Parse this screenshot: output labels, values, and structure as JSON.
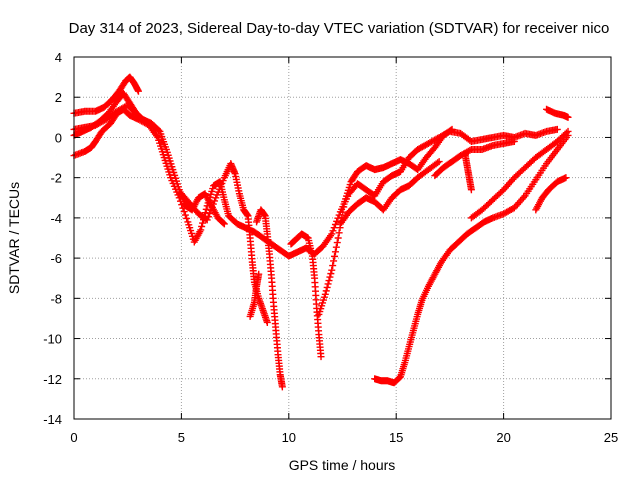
{
  "chart_data": {
    "type": "scatter",
    "title": "Day 314 of 2023, Sidereal Day-to-day VTEC variation (SDTVAR) for receiver nico",
    "xlabel": "GPS time / hours",
    "ylabel": "SDTVAR / TECUs",
    "xlim": [
      0,
      25
    ],
    "ylim": [
      -14,
      4
    ],
    "grid": true,
    "marker": "+",
    "marker_color": "#ff0000",
    "x_ticks": [
      "0",
      "5",
      "10",
      "15",
      "20",
      "25"
    ],
    "y_ticks": [
      "4",
      "2",
      "0",
      "-2",
      "-4",
      "-6",
      "-8",
      "-10",
      "-12",
      "-14"
    ],
    "series": [
      {
        "name": "trace-1",
        "points": [
          [
            0.0,
            -0.9
          ],
          [
            0.5,
            -0.7
          ],
          [
            0.8,
            -0.5
          ],
          [
            1.0,
            -0.2
          ],
          [
            1.3,
            0.3
          ],
          [
            1.7,
            0.7
          ],
          [
            2.0,
            1.2
          ],
          [
            2.3,
            1.4
          ],
          [
            2.6,
            1.1
          ],
          [
            3.0,
            0.9
          ],
          [
            3.5,
            0.6
          ],
          [
            3.9,
            0.0
          ],
          [
            4.2,
            -1.0
          ],
          [
            4.5,
            -2.0
          ],
          [
            4.9,
            -3.0
          ],
          [
            5.3,
            -4.2
          ],
          [
            5.6,
            -5.2
          ],
          [
            5.9,
            -4.6
          ],
          [
            6.2,
            -3.4
          ],
          [
            6.5,
            -2.4
          ],
          [
            6.8,
            -2.2
          ],
          [
            7.0,
            -3.1
          ],
          [
            7.2,
            -3.9
          ],
          [
            7.6,
            -4.3
          ],
          [
            8.0,
            -4.5
          ],
          [
            8.4,
            -4.7
          ],
          [
            8.8,
            -5.0
          ],
          [
            9.2,
            -5.3
          ],
          [
            9.6,
            -5.6
          ],
          [
            10.0,
            -5.9
          ],
          [
            10.4,
            -5.7
          ],
          [
            10.8,
            -5.5
          ],
          [
            11.2,
            -5.8
          ],
          [
            11.6,
            -5.4
          ],
          [
            12.0,
            -4.8
          ],
          [
            12.4,
            -3.7
          ],
          [
            12.8,
            -2.8
          ],
          [
            13.2,
            -2.3
          ],
          [
            13.6,
            -2.6
          ],
          [
            14.0,
            -2.9
          ],
          [
            14.4,
            -2.2
          ],
          [
            14.8,
            -1.9
          ],
          [
            15.2,
            -1.7
          ],
          [
            15.6,
            -1.0
          ],
          [
            16.0,
            -0.6
          ],
          [
            16.5,
            -0.3
          ],
          [
            17.0,
            0.0
          ],
          [
            17.5,
            0.3
          ],
          [
            18.0,
            0.2
          ],
          [
            18.5,
            -0.2
          ],
          [
            19.0,
            -0.1
          ],
          [
            19.5,
            0.0
          ],
          [
            20.0,
            0.1
          ],
          [
            20.5,
            0.0
          ],
          [
            21.0,
            0.2
          ],
          [
            21.5,
            0.1
          ],
          [
            22.0,
            0.3
          ],
          [
            22.5,
            0.4
          ]
        ]
      },
      {
        "name": "trace-2",
        "points": [
          [
            0.0,
            0.1
          ],
          [
            0.4,
            0.3
          ],
          [
            0.8,
            0.5
          ],
          [
            1.2,
            0.8
          ],
          [
            1.6,
            1.2
          ],
          [
            2.0,
            1.8
          ],
          [
            2.3,
            2.2
          ],
          [
            2.6,
            1.7
          ],
          [
            2.9,
            1.2
          ],
          [
            3.2,
            0.9
          ],
          [
            3.6,
            0.7
          ],
          [
            4.0,
            0.3
          ],
          [
            4.3,
            -0.6
          ],
          [
            4.6,
            -1.6
          ],
          [
            4.9,
            -2.6
          ],
          [
            5.2,
            -3.4
          ],
          [
            5.5,
            -3.6
          ],
          [
            5.8,
            -3.0
          ],
          [
            6.1,
            -2.8
          ],
          [
            6.4,
            -3.4
          ],
          [
            6.7,
            -4.0
          ],
          [
            7.0,
            -4.3
          ]
        ]
      },
      {
        "name": "trace-3",
        "points": [
          [
            0.0,
            1.2
          ],
          [
            0.5,
            1.3
          ],
          [
            1.0,
            1.3
          ],
          [
            1.4,
            1.5
          ],
          [
            1.8,
            1.9
          ],
          [
            2.1,
            2.3
          ],
          [
            2.4,
            2.8
          ],
          [
            2.6,
            3.0
          ],
          [
            2.8,
            2.7
          ],
          [
            3.0,
            2.3
          ]
        ]
      },
      {
        "name": "trace-4",
        "points": [
          [
            0.0,
            0.4
          ],
          [
            0.5,
            0.5
          ],
          [
            1.0,
            0.6
          ],
          [
            1.5,
            0.9
          ],
          [
            2.0,
            1.3
          ],
          [
            2.5,
            1.6
          ],
          [
            2.8,
            1.3
          ]
        ]
      },
      {
        "name": "trace-5",
        "points": [
          [
            5.0,
            -2.8
          ],
          [
            5.4,
            -3.3
          ],
          [
            5.8,
            -3.8
          ],
          [
            6.2,
            -4.1
          ],
          [
            6.6,
            -3.0
          ],
          [
            7.0,
            -2.0
          ],
          [
            7.3,
            -1.3
          ],
          [
            7.5,
            -1.8
          ],
          [
            7.7,
            -2.8
          ],
          [
            7.9,
            -3.6
          ],
          [
            8.1,
            -3.9
          ],
          [
            8.2,
            -5.0
          ],
          [
            8.3,
            -6.2
          ],
          [
            8.4,
            -7.2
          ],
          [
            8.6,
            -8.0
          ],
          [
            8.8,
            -8.6
          ],
          [
            9.0,
            -9.2
          ]
        ]
      },
      {
        "name": "trace-6",
        "points": [
          [
            8.5,
            -4.2
          ],
          [
            8.7,
            -3.6
          ],
          [
            8.9,
            -3.9
          ],
          [
            9.0,
            -4.8
          ],
          [
            9.1,
            -5.8
          ],
          [
            9.2,
            -7.0
          ],
          [
            9.3,
            -8.4
          ],
          [
            9.4,
            -9.6
          ],
          [
            9.5,
            -10.8
          ],
          [
            9.6,
            -11.8
          ],
          [
            9.7,
            -12.4
          ]
        ]
      },
      {
        "name": "trace-7",
        "points": [
          [
            8.2,
            -8.9
          ],
          [
            8.4,
            -8.2
          ],
          [
            8.5,
            -7.4
          ],
          [
            8.6,
            -6.8
          ]
        ]
      },
      {
        "name": "trace-8",
        "points": [
          [
            10.1,
            -5.3
          ],
          [
            10.3,
            -5.1
          ],
          [
            10.6,
            -4.8
          ],
          [
            10.9,
            -5.0
          ],
          [
            11.1,
            -5.9
          ],
          [
            11.2,
            -7.0
          ],
          [
            11.3,
            -8.5
          ],
          [
            11.4,
            -9.8
          ],
          [
            11.5,
            -10.9
          ]
        ]
      },
      {
        "name": "trace-9",
        "points": [
          [
            11.4,
            -8.8
          ],
          [
            11.7,
            -7.8
          ],
          [
            12.0,
            -6.6
          ],
          [
            12.3,
            -5.0
          ],
          [
            12.6,
            -3.2
          ],
          [
            12.9,
            -2.2
          ],
          [
            13.2,
            -1.7
          ],
          [
            13.6,
            -1.4
          ],
          [
            14.0,
            -1.6
          ],
          [
            14.4,
            -1.5
          ],
          [
            14.8,
            -1.3
          ],
          [
            15.2,
            -1.1
          ],
          [
            15.6,
            -1.3
          ],
          [
            16.0,
            -1.6
          ],
          [
            16.4,
            -1.0
          ],
          [
            16.8,
            -0.5
          ],
          [
            17.2,
            0.1
          ],
          [
            17.6,
            0.4
          ]
        ]
      },
      {
        "name": "trace-10",
        "points": [
          [
            12.4,
            -4.3
          ],
          [
            12.8,
            -3.7
          ],
          [
            13.2,
            -3.3
          ],
          [
            13.6,
            -3.0
          ],
          [
            14.0,
            -3.2
          ],
          [
            14.4,
            -3.6
          ],
          [
            14.8,
            -3.0
          ],
          [
            15.2,
            -2.6
          ],
          [
            15.6,
            -2.4
          ],
          [
            16.0,
            -2.0
          ],
          [
            16.5,
            -1.6
          ],
          [
            17.0,
            -1.2
          ]
        ]
      },
      {
        "name": "trace-11",
        "points": [
          [
            14.0,
            -12.0
          ],
          [
            14.3,
            -12.1
          ],
          [
            14.6,
            -12.1
          ],
          [
            14.9,
            -12.2
          ],
          [
            15.2,
            -11.9
          ],
          [
            15.4,
            -11.2
          ],
          [
            15.6,
            -10.4
          ],
          [
            15.8,
            -9.6
          ],
          [
            16.0,
            -8.8
          ],
          [
            16.2,
            -8.1
          ],
          [
            16.5,
            -7.4
          ],
          [
            16.8,
            -6.8
          ],
          [
            17.1,
            -6.2
          ],
          [
            17.5,
            -5.6
          ],
          [
            17.9,
            -5.2
          ],
          [
            18.3,
            -4.8
          ],
          [
            18.7,
            -4.5
          ],
          [
            19.1,
            -4.2
          ],
          [
            19.5,
            -4.0
          ],
          [
            20.0,
            -3.8
          ],
          [
            20.5,
            -3.5
          ],
          [
            21.0,
            -2.9
          ],
          [
            21.5,
            -2.1
          ],
          [
            22.0,
            -1.3
          ],
          [
            22.5,
            -0.6
          ],
          [
            23.0,
            0.1
          ]
        ]
      },
      {
        "name": "trace-12",
        "points": [
          [
            18.5,
            -4.0
          ],
          [
            19.0,
            -3.6
          ],
          [
            19.5,
            -3.1
          ],
          [
            20.0,
            -2.6
          ],
          [
            20.5,
            -2.0
          ],
          [
            21.0,
            -1.5
          ],
          [
            21.5,
            -1.0
          ],
          [
            22.0,
            -0.6
          ],
          [
            22.5,
            -0.2
          ],
          [
            23.0,
            0.3
          ]
        ]
      },
      {
        "name": "trace-13",
        "points": [
          [
            16.8,
            -1.9
          ],
          [
            17.2,
            -1.5
          ],
          [
            17.6,
            -1.2
          ],
          [
            18.0,
            -0.9
          ],
          [
            18.5,
            -0.6
          ],
          [
            19.0,
            -0.6
          ],
          [
            19.5,
            -0.4
          ],
          [
            20.0,
            -0.3
          ],
          [
            20.5,
            -0.2
          ]
        ]
      },
      {
        "name": "trace-14",
        "points": [
          [
            18.2,
            -0.8
          ],
          [
            18.3,
            -1.4
          ],
          [
            18.4,
            -2.0
          ],
          [
            18.5,
            -2.6
          ]
        ]
      },
      {
        "name": "trace-15",
        "points": [
          [
            21.5,
            -3.6
          ],
          [
            21.8,
            -3.0
          ],
          [
            22.1,
            -2.6
          ],
          [
            22.5,
            -2.2
          ],
          [
            22.9,
            -2.0
          ]
        ]
      },
      {
        "name": "trace-16",
        "points": [
          [
            22.0,
            1.4
          ],
          [
            22.4,
            1.2
          ],
          [
            22.8,
            1.1
          ],
          [
            23.0,
            1.0
          ]
        ]
      }
    ]
  }
}
